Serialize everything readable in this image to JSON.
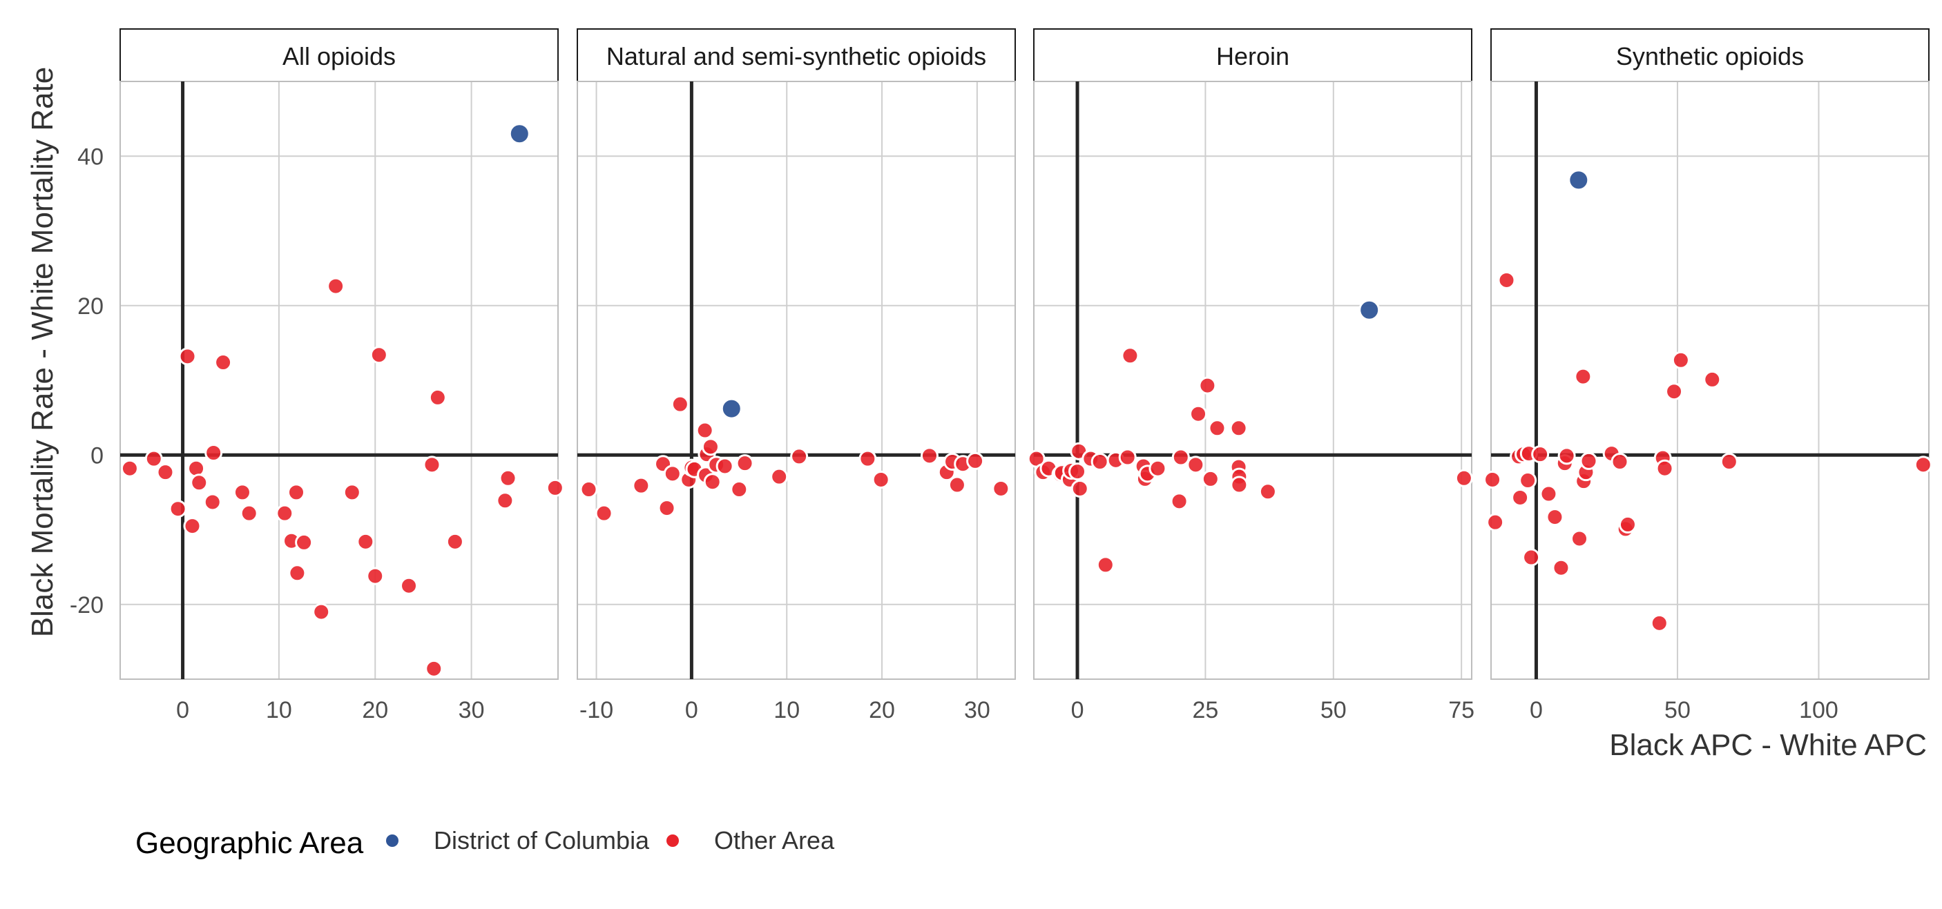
{
  "chart_data": {
    "type": "scatter",
    "ylabel": "Black Mortality Rate - White Mortality Rate",
    "xlabel": "Black APC - White APC",
    "ylim": [
      -30,
      50
    ],
    "y_ticks": [
      -20,
      0,
      20,
      40
    ],
    "legend": {
      "title": "Geographic Area",
      "placement": "bottom-left",
      "entries": [
        {
          "name": "District of Columbia",
          "color": "#2f5597"
        },
        {
          "name": "Other Area",
          "color": "#e8232b"
        }
      ]
    },
    "colors": {
      "District of Columbia": "#2f5597",
      "Other Area": "#e8232b"
    },
    "grid": true,
    "facets": [
      {
        "title": "All opioids",
        "xlim": [
          -6.5,
          39
        ],
        "x_ticks": [
          0,
          10,
          20,
          30
        ],
        "series": [
          {
            "name": "District of Columbia",
            "points": [
              [
                35,
                43
              ]
            ]
          },
          {
            "name": "Other Area",
            "points": [
              [
                -5.5,
                -1.8
              ],
              [
                -3,
                -0.5
              ],
              [
                -1.8,
                -2.3
              ],
              [
                -0.5,
                -7.2
              ],
              [
                0.5,
                13.2
              ],
              [
                1,
                -9.5
              ],
              [
                1.4,
                -1.8
              ],
              [
                1.7,
                -3.7
              ],
              [
                3.2,
                0.3
              ],
              [
                3.1,
                -6.3
              ],
              [
                4.2,
                12.4
              ],
              [
                6.2,
                -5
              ],
              [
                6.9,
                -7.8
              ],
              [
                10.6,
                -7.8
              ],
              [
                11.3,
                -11.5
              ],
              [
                11.8,
                -5
              ],
              [
                11.9,
                -15.8
              ],
              [
                12.6,
                -11.7
              ],
              [
                14.4,
                -21
              ],
              [
                15.9,
                22.6
              ],
              [
                17.6,
                -5
              ],
              [
                19,
                -11.6
              ],
              [
                20,
                -16.2
              ],
              [
                20.4,
                13.4
              ],
              [
                23.5,
                -17.5
              ],
              [
                25.9,
                -1.3
              ],
              [
                26.5,
                7.7
              ],
              [
                26.1,
                -28.6
              ],
              [
                28.3,
                -11.6
              ],
              [
                33.5,
                -6.1
              ],
              [
                33.8,
                -3.1
              ],
              [
                38.7,
                -4.4
              ]
            ]
          }
        ]
      },
      {
        "title": "Natural and semi-synthetic opioids",
        "xlim": [
          -12,
          34
        ],
        "x_ticks": [
          -10,
          0,
          10,
          20,
          30
        ],
        "series": [
          {
            "name": "District of Columbia",
            "points": [
              [
                4.2,
                6.2
              ]
            ]
          },
          {
            "name": "Other Area",
            "points": [
              [
                -10.8,
                -4.6
              ],
              [
                -9.2,
                -7.8
              ],
              [
                -5.3,
                -4.1
              ],
              [
                -3,
                -1.2
              ],
              [
                -2.6,
                -7.1
              ],
              [
                -2,
                -2.5
              ],
              [
                -1.2,
                6.8
              ],
              [
                -0.3,
                -3.3
              ],
              [
                0,
                -1.7
              ],
              [
                0.3,
                -1.9
              ],
              [
                1.4,
                3.3
              ],
              [
                1.5,
                -2.7
              ],
              [
                1.6,
                0.1
              ],
              [
                2,
                1.1
              ],
              [
                2.2,
                -3.6
              ],
              [
                2.6,
                -1.3
              ],
              [
                3.5,
                -1.5
              ],
              [
                5,
                -4.6
              ],
              [
                5.6,
                -1.1
              ],
              [
                9.2,
                -2.9
              ],
              [
                11.3,
                -0.2
              ],
              [
                18.5,
                -0.5
              ],
              [
                19.9,
                -3.3
              ],
              [
                25,
                -0.1
              ],
              [
                26.8,
                -2.3
              ],
              [
                27.4,
                -0.9
              ],
              [
                27.9,
                -4
              ],
              [
                28.5,
                -1.2
              ],
              [
                29.8,
                -0.8
              ],
              [
                32.5,
                -4.5
              ]
            ]
          }
        ]
      },
      {
        "title": "Heroin",
        "xlim": [
          -8.5,
          77
        ],
        "x_ticks": [
          0,
          25,
          50,
          75
        ],
        "series": [
          {
            "name": "District of Columbia",
            "points": [
              [
                57,
                19.4
              ]
            ]
          },
          {
            "name": "Other Area",
            "points": [
              [
                -8,
                -0.5
              ],
              [
                -6.7,
                -2.3
              ],
              [
                -5.6,
                -1.8
              ],
              [
                -3.3,
                -2.6
              ],
              [
                -3,
                -2.4
              ],
              [
                -1.5,
                -3.3
              ],
              [
                -1.2,
                -2.1
              ],
              [
                0,
                -2.2
              ],
              [
                0.3,
                0.5
              ],
              [
                0.5,
                -4.5
              ],
              [
                2.6,
                -0.5
              ],
              [
                4.4,
                -0.9
              ],
              [
                5.5,
                -14.7
              ],
              [
                7.5,
                -0.7
              ],
              [
                9.8,
                -0.3
              ],
              [
                10.3,
                13.3
              ],
              [
                12.9,
                -1.5
              ],
              [
                13.2,
                -3.2
              ],
              [
                13.7,
                -2.5
              ],
              [
                15.7,
                -1.8
              ],
              [
                19.9,
                -6.2
              ],
              [
                20.2,
                -0.3
              ],
              [
                23.1,
                -1.3
              ],
              [
                23.6,
                5.5
              ],
              [
                25.4,
                9.3
              ],
              [
                26,
                -3.2
              ],
              [
                27.3,
                3.6
              ],
              [
                31.5,
                3.6
              ],
              [
                31.5,
                -1.6
              ],
              [
                31.6,
                -2.9
              ],
              [
                31.6,
                -4
              ],
              [
                37.2,
                -4.9
              ],
              [
                75.5,
                -3.1
              ]
            ]
          }
        ]
      },
      {
        "title": "Synthetic opioids",
        "xlim": [
          -16,
          139
        ],
        "x_ticks": [
          0,
          50,
          100
        ],
        "series": [
          {
            "name": "District of Columbia",
            "points": [
              [
                15,
                36.8
              ]
            ]
          },
          {
            "name": "Other Area",
            "points": [
              [
                -15.5,
                -3.3
              ],
              [
                -14.5,
                -9
              ],
              [
                -10.5,
                23.4
              ],
              [
                -6.2,
                -0.2
              ],
              [
                -5.7,
                -5.7
              ],
              [
                -4.5,
                0.1
              ],
              [
                -3,
                -3.4
              ],
              [
                -2.6,
                0.2
              ],
              [
                -1.8,
                -13.7
              ],
              [
                1.4,
                0.1
              ],
              [
                4.4,
                -5.2
              ],
              [
                6.6,
                -8.3
              ],
              [
                8.8,
                -15.1
              ],
              [
                10.1,
                -1.1
              ],
              [
                10.8,
                -0.1
              ],
              [
                15.3,
                -11.2
              ],
              [
                16.6,
                10.5
              ],
              [
                16.8,
                -3.5
              ],
              [
                17.6,
                -2.3
              ],
              [
                18.6,
                -0.8
              ],
              [
                26.7,
                0.2
              ],
              [
                29.6,
                -0.9
              ],
              [
                31.6,
                -9.9
              ],
              [
                32.4,
                -9.3
              ],
              [
                43.6,
                -22.5
              ],
              [
                44.8,
                -0.4
              ],
              [
                45.5,
                -1.8
              ],
              [
                48.8,
                8.5
              ],
              [
                51.2,
                12.7
              ],
              [
                62.3,
                10.1
              ],
              [
                68.3,
                -0.9
              ],
              [
                137,
                -1.3
              ]
            ]
          }
        ]
      }
    ]
  }
}
